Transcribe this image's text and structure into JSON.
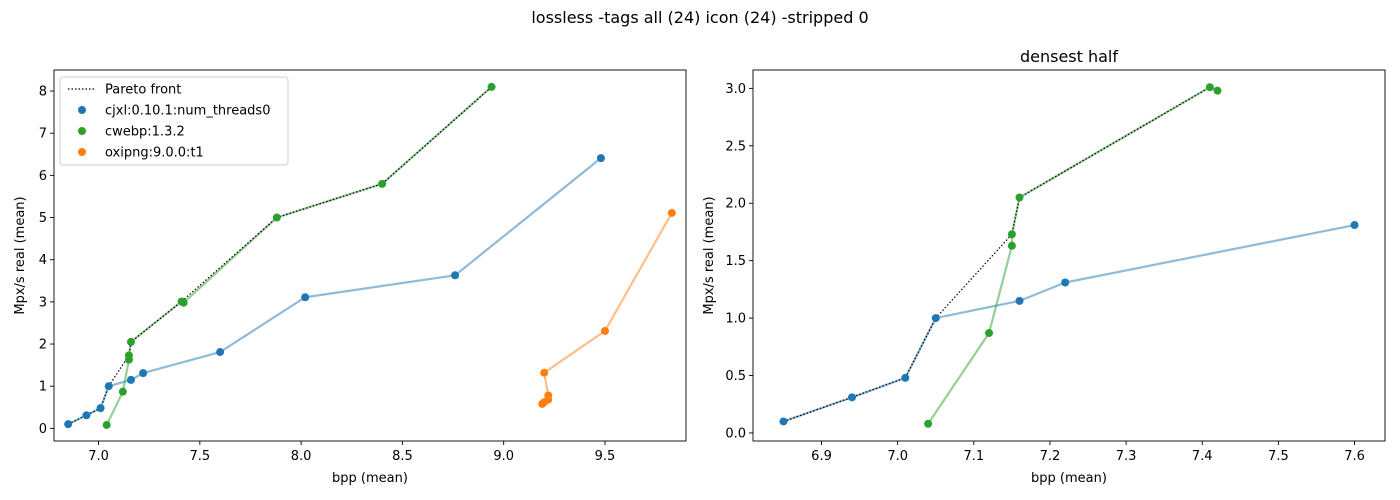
{
  "suptitle": "lossless -tags all (24) icon (24) -stripped 0",
  "legend": {
    "placement": "upper-left",
    "pareto_label": "Pareto front",
    "series_labels": [
      "cjxl:0.10.1:num_threads0",
      "cwebp:1.3.2",
      "oxipng:9.0.0:t1"
    ]
  },
  "colors": {
    "cjxl": "#1f77b4",
    "cwebp": "#2ca02c",
    "oxipng": "#ff7f0e",
    "pareto": "#000000"
  },
  "chart_data": [
    {
      "type": "line",
      "title": "",
      "xlabel": "bpp (mean)",
      "ylabel": "Mpx/s real (mean)",
      "xlim": [
        6.78,
        9.9
      ],
      "ylim": [
        -0.3,
        8.5
      ],
      "xticks": [
        "7.0",
        "7.5",
        "8.0",
        "8.5",
        "9.0",
        "9.5"
      ],
      "yticks": [
        "0",
        "1",
        "2",
        "3",
        "4",
        "5",
        "6",
        "7",
        "8"
      ],
      "grid": false,
      "series": [
        {
          "name": "cjxl:0.10.1:num_threads0",
          "points": [
            [
              6.85,
              0.1
            ],
            [
              6.94,
              0.31
            ],
            [
              7.01,
              0.48
            ],
            [
              7.05,
              1.0
            ],
            [
              7.16,
              1.15
            ],
            [
              7.22,
              1.31
            ],
            [
              7.6,
              1.81
            ],
            [
              8.02,
              3.11
            ],
            [
              8.76,
              3.63
            ],
            [
              9.48,
              6.41
            ]
          ]
        },
        {
          "name": "cwebp:1.3.2",
          "points": [
            [
              7.04,
              0.08
            ],
            [
              7.12,
              0.87
            ],
            [
              7.15,
              1.63
            ],
            [
              7.15,
              1.73
            ],
            [
              7.16,
              2.05
            ],
            [
              7.41,
              3.01
            ],
            [
              7.42,
              2.98
            ],
            [
              7.88,
              5.0
            ],
            [
              8.4,
              5.8
            ],
            [
              8.94,
              8.1
            ]
          ]
        },
        {
          "name": "oxipng:9.0.0:t1",
          "points": [
            [
              9.19,
              0.58
            ],
            [
              9.2,
              0.62
            ],
            [
              9.22,
              0.68
            ],
            [
              9.22,
              0.78
            ],
            [
              9.2,
              1.32
            ],
            [
              9.5,
              2.31
            ],
            [
              9.83,
              5.11
            ]
          ]
        }
      ],
      "pareto": [
        [
          6.85,
          0.1
        ],
        [
          6.94,
          0.31
        ],
        [
          7.01,
          0.48
        ],
        [
          7.05,
          1.0
        ],
        [
          7.15,
          1.73
        ],
        [
          7.16,
          2.05
        ],
        [
          7.41,
          3.01
        ],
        [
          7.88,
          5.0
        ],
        [
          8.4,
          5.8
        ],
        [
          8.94,
          8.1
        ]
      ]
    },
    {
      "type": "line",
      "title": "densest half",
      "xlabel": "bpp (mean)",
      "ylabel": "Mpx/s real (mean)",
      "xlim": [
        6.81,
        7.64
      ],
      "ylim": [
        -0.07,
        3.16
      ],
      "xticks": [
        "6.9",
        "7.0",
        "7.1",
        "7.2",
        "7.3",
        "7.4",
        "7.5",
        "7.6"
      ],
      "yticks": [
        "0.0",
        "0.5",
        "1.0",
        "1.5",
        "2.0",
        "2.5",
        "3.0"
      ],
      "grid": false,
      "series": [
        {
          "name": "cjxl:0.10.1:num_threads0",
          "points": [
            [
              6.85,
              0.1
            ],
            [
              6.94,
              0.31
            ],
            [
              7.01,
              0.48
            ],
            [
              7.05,
              1.0
            ],
            [
              7.16,
              1.15
            ],
            [
              7.22,
              1.31
            ],
            [
              7.6,
              1.81
            ]
          ]
        },
        {
          "name": "cwebp:1.3.2",
          "points": [
            [
              7.04,
              0.08
            ],
            [
              7.12,
              0.87
            ],
            [
              7.15,
              1.63
            ],
            [
              7.15,
              1.73
            ],
            [
              7.16,
              2.05
            ],
            [
              7.41,
              3.01
            ],
            [
              7.42,
              2.98
            ]
          ]
        }
      ],
      "pareto": [
        [
          6.85,
          0.1
        ],
        [
          6.94,
          0.31
        ],
        [
          7.01,
          0.48
        ],
        [
          7.05,
          1.0
        ],
        [
          7.15,
          1.73
        ],
        [
          7.16,
          2.05
        ],
        [
          7.41,
          3.01
        ]
      ]
    }
  ]
}
